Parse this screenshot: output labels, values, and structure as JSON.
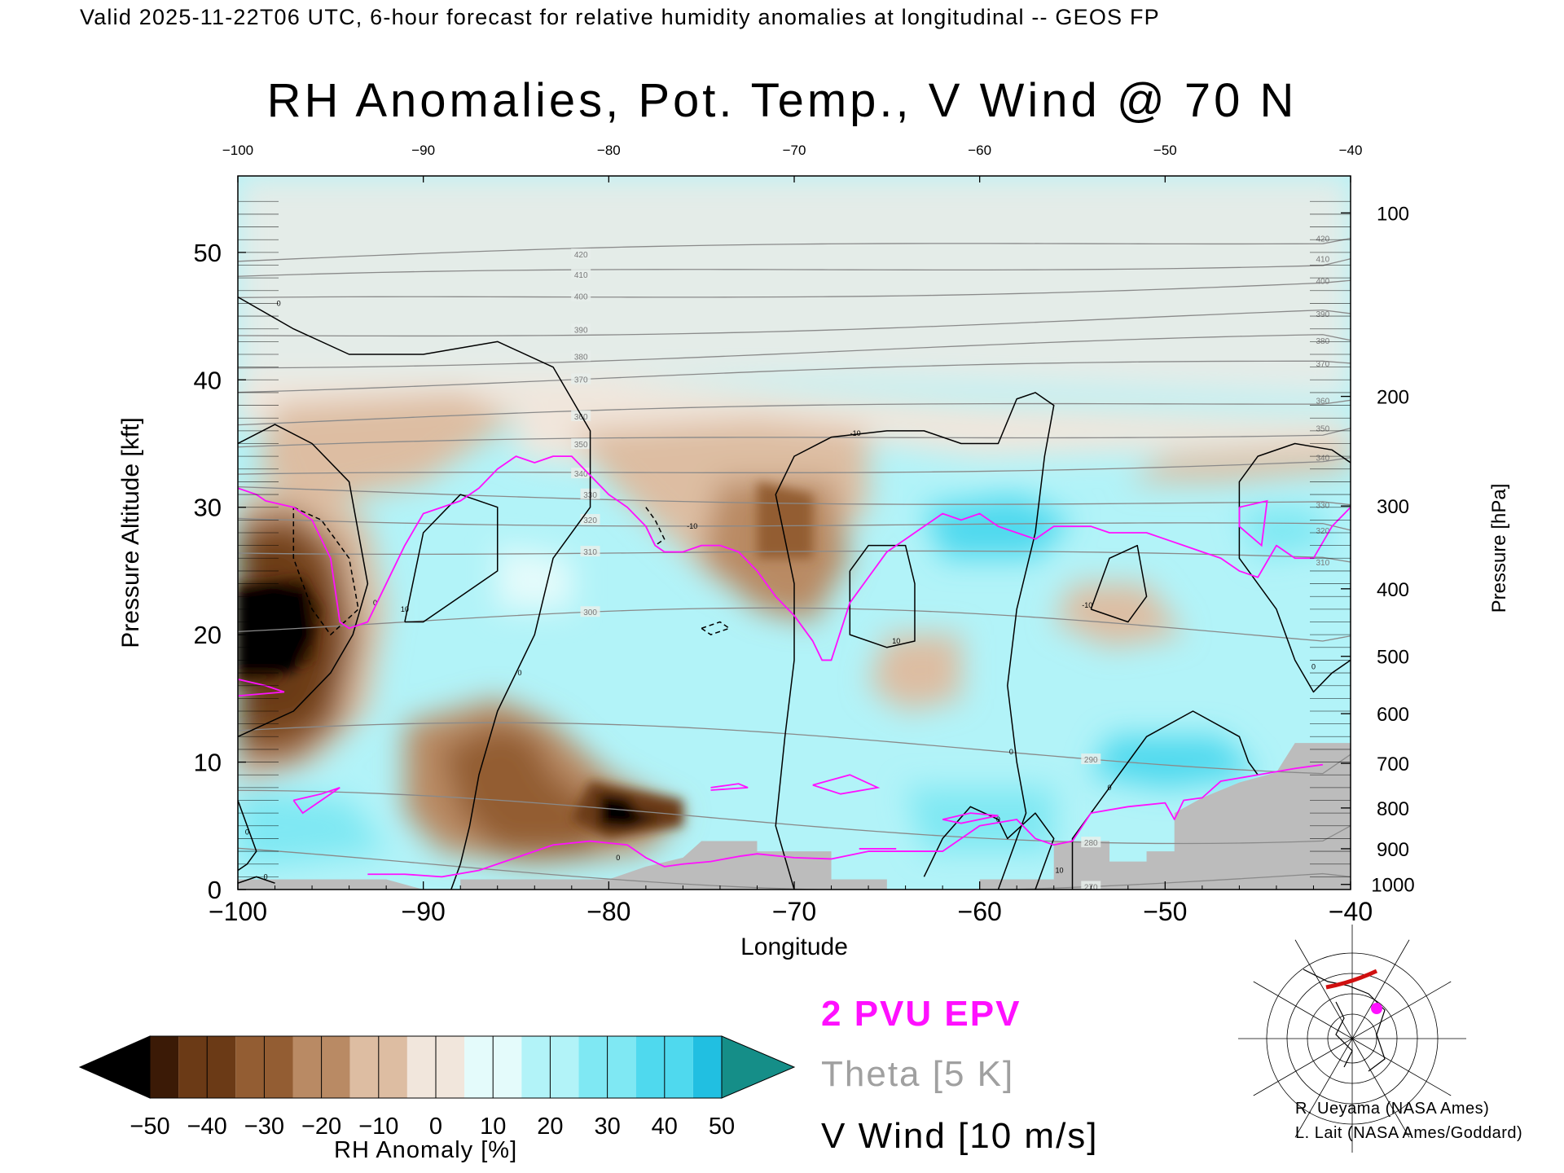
{
  "header": "Valid 2025-11-22T06 UTC, 6-hour forecast for relative humidity anomalies at longitudinal -- GEOS FP",
  "chart_data": {
    "type": "heatmap",
    "title": "RH Anomalies, Pot. Temp., V Wind @ 70 N",
    "xlabel": "Longitude",
    "ylabel": "Pressure Altitude [kft]",
    "y2label": "Pressure [hPa]",
    "xlim": [
      -100,
      -40
    ],
    "ylim": [
      0,
      56
    ],
    "x_ticks": [
      -100,
      -90,
      -80,
      -70,
      -60,
      -50,
      -40
    ],
    "y_ticks": [
      0,
      10,
      20,
      30,
      40,
      50
    ],
    "pressure_ticks": [
      {
        "hpa": 100,
        "kft": 53.1
      },
      {
        "hpa": 200,
        "kft": 38.7
      },
      {
        "hpa": 300,
        "kft": 30.1
      },
      {
        "hpa": 400,
        "kft": 23.6
      },
      {
        "hpa": 500,
        "kft": 18.3
      },
      {
        "hpa": 600,
        "kft": 13.8
      },
      {
        "hpa": 700,
        "kft": 9.9
      },
      {
        "hpa": 800,
        "kft": 6.4
      },
      {
        "hpa": 900,
        "kft": 3.2
      },
      {
        "hpa": 1000,
        "kft": 0.4
      }
    ],
    "colorbar": {
      "label": "RH Anomaly [%]",
      "ticks": [
        -50,
        -40,
        -30,
        -20,
        -10,
        0,
        10,
        20,
        30,
        40,
        50
      ],
      "colors": [
        "#000000",
        "#3b1a06",
        "#6b3a16",
        "#935d33",
        "#b98a64",
        "#ddbda2",
        "#f1e6dc",
        "#e4fbfb",
        "#b2f3f8",
        "#7fe8f3",
        "#4fd9ee",
        "#21bfe1",
        "#0a95b5",
        "#158e88"
      ]
    },
    "theta_contours": {
      "label_text": "Theta [5 K]",
      "levels": [
        420,
        410,
        400,
        390,
        380,
        370,
        360,
        350,
        340,
        330,
        320,
        310,
        300,
        290,
        280,
        270
      ],
      "label_kft": [
        50.2,
        48.6,
        46.9,
        44.3,
        42.2,
        40.4,
        37.5,
        35.3,
        33.0,
        30.8,
        28.8,
        26.3,
        20.5,
        11.2,
        5.6,
        1.6
      ]
    },
    "series": [
      {
        "name": "2 PVU EPV",
        "color": "#ff10ff",
        "x": [
          -100,
          -99,
          -98.5,
          -97,
          -96,
          -95,
          -94.5,
          -94,
          -93,
          -92,
          -91,
          -90,
          -89,
          -88,
          -87,
          -86,
          -85,
          -84,
          -83,
          -82,
          -81,
          -80,
          -79,
          -78,
          -77.5,
          -77,
          -76,
          -75,
          -74,
          -73,
          -72,
          -71,
          -70,
          -69,
          -68.5,
          -68,
          -67,
          -66,
          -65,
          -64,
          -63,
          -62,
          -61,
          -60,
          -59,
          -58,
          -57,
          -56,
          -55,
          -54,
          -53,
          -52,
          -51,
          -50,
          -49,
          -48,
          -47,
          -46,
          -45,
          -44,
          -43,
          -42,
          -41,
          -40
        ],
        "y": [
          31.5,
          31,
          30.5,
          30,
          29,
          26,
          21,
          20.5,
          21,
          24,
          27,
          29.5,
          30,
          30.5,
          31.5,
          33,
          34,
          33.5,
          34,
          34,
          32.5,
          31,
          30,
          28.5,
          27,
          26.5,
          26.5,
          27,
          27,
          26.5,
          25,
          23,
          21.5,
          19.5,
          18,
          18,
          22.5,
          24.5,
          26.5,
          27.5,
          28.5,
          29.5,
          29,
          29.5,
          28.5,
          28,
          27.5,
          28.5,
          28.5,
          28.5,
          28,
          28,
          28,
          27.5,
          27,
          26.5,
          26,
          25,
          24.5,
          27,
          26,
          26,
          28.5,
          30
        ]
      },
      {
        "name": "2 PVU EPV",
        "color": "#ff10ff",
        "x": [
          -93,
          -91,
          -89,
          -87,
          -85,
          -83,
          -81,
          -79,
          -78,
          -77,
          -76,
          -74.5,
          -73,
          -72,
          -70,
          -68,
          -66,
          -64,
          -62,
          -60,
          -58,
          -57,
          -56,
          -55,
          -54,
          -52,
          -50,
          -49.5,
          -49,
          -48,
          -47,
          -45,
          -43,
          -41.5
        ],
        "y": [
          1.2,
          1.2,
          1.0,
          1.5,
          2.5,
          3.5,
          3.8,
          3.5,
          2.5,
          1.8,
          2.0,
          2.2,
          2.6,
          2.8,
          2.5,
          2.4,
          3.0,
          3.0,
          3.0,
          5.0,
          5.5,
          4.0,
          3.5,
          3.8,
          6.0,
          6.5,
          6.8,
          5.5,
          7.0,
          7.2,
          8.5,
          9.0,
          9.5,
          9.8
        ]
      }
    ],
    "v_wind_label": "V Wind [10 m/s]",
    "v_wind_levels": [
      0,
      0,
      0,
      -10,
      -10,
      10,
      -10,
      0,
      10,
      0,
      0,
      0,
      0,
      10,
      0,
      0
    ]
  },
  "legend": {
    "epv": "2 PVU EPV",
    "theta": "Theta [5 K]",
    "vwind": "V Wind [10 m/s]"
  },
  "credits": [
    "R. Ueyama (NASA Ames)",
    "L. Lait (NASA Ames/Goddard)"
  ]
}
